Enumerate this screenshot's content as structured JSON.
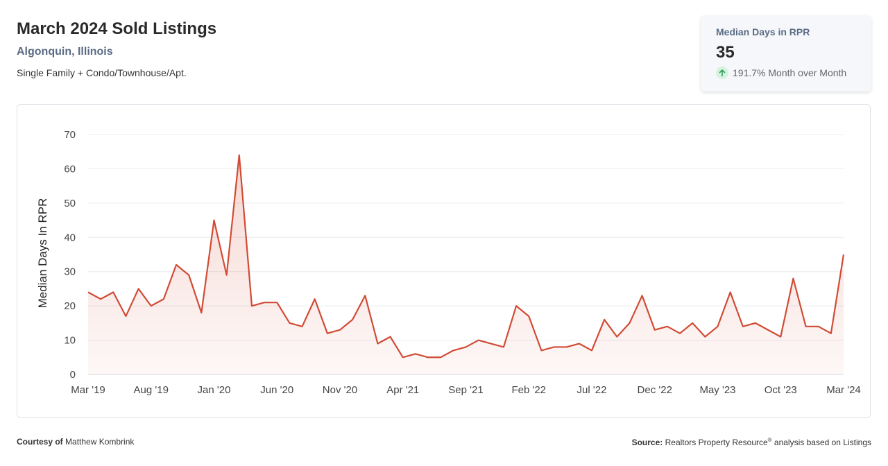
{
  "header": {
    "title": "March 2024 Sold Listings",
    "location": "Algonquin, Illinois",
    "property_types": "Single Family + Condo/Townhouse/Apt."
  },
  "stat": {
    "label": "Median Days in RPR",
    "value": "35",
    "change": "191.7% Month over Month",
    "icon": "arrow-up-icon",
    "icon_color": "#2e9e5b"
  },
  "footer": {
    "courtesy_label": "Courtesy of",
    "courtesy_name": "Matthew Kombrink",
    "source_label": "Source:",
    "source_text_a": "Realtors Property Resource",
    "source_mark": "®",
    "source_text_b": " analysis based on Listings"
  },
  "chart_data": {
    "type": "area",
    "ylabel": "Median Days In RPR",
    "xlabel": "",
    "ylim": [
      0,
      70
    ],
    "yticks": [
      0,
      10,
      20,
      30,
      40,
      50,
      60,
      70
    ],
    "grid": true,
    "line_color": "#d14b34",
    "x_tick_labels": [
      "Mar '19",
      "Aug '19",
      "Jan '20",
      "Jun '20",
      "Nov '20",
      "Apr '21",
      "Sep '21",
      "Feb '22",
      "Jul '22",
      "Dec '22",
      "May '23",
      "Oct '23",
      "Mar '24"
    ],
    "x": [
      "Mar '19",
      "Apr '19",
      "May '19",
      "Jun '19",
      "Jul '19",
      "Aug '19",
      "Sep '19",
      "Oct '19",
      "Nov '19",
      "Dec '19",
      "Jan '20",
      "Feb '20",
      "Mar '20",
      "Apr '20",
      "May '20",
      "Jun '20",
      "Jul '20",
      "Aug '20",
      "Sep '20",
      "Oct '20",
      "Nov '20",
      "Dec '20",
      "Jan '21",
      "Feb '21",
      "Mar '21",
      "Apr '21",
      "May '21",
      "Jun '21",
      "Jul '21",
      "Aug '21",
      "Sep '21",
      "Oct '21",
      "Nov '21",
      "Dec '21",
      "Jan '22",
      "Feb '22",
      "Mar '22",
      "Apr '22",
      "May '22",
      "Jun '22",
      "Jul '22",
      "Aug '22",
      "Sep '22",
      "Oct '22",
      "Nov '22",
      "Dec '22",
      "Jan '23",
      "Feb '23",
      "Mar '23",
      "Apr '23",
      "May '23",
      "Jun '23",
      "Jul '23",
      "Aug '23",
      "Sep '23",
      "Oct '23",
      "Nov '23",
      "Dec '23",
      "Jan '24",
      "Feb '24",
      "Mar '24"
    ],
    "series": [
      {
        "values": [
          24,
          22,
          24,
          17,
          25,
          20,
          22,
          32,
          29,
          18,
          45,
          29,
          64,
          20,
          21,
          21,
          15,
          14,
          22,
          12,
          13,
          16,
          23,
          9,
          11,
          5,
          6,
          5,
          5,
          7,
          8,
          10,
          9,
          8,
          20,
          17,
          7,
          8,
          8,
          9,
          7,
          16,
          11,
          15,
          23,
          13,
          14,
          12,
          15,
          11,
          14,
          24,
          14,
          15,
          13,
          11,
          28,
          14,
          14,
          12,
          35
        ]
      }
    ]
  }
}
